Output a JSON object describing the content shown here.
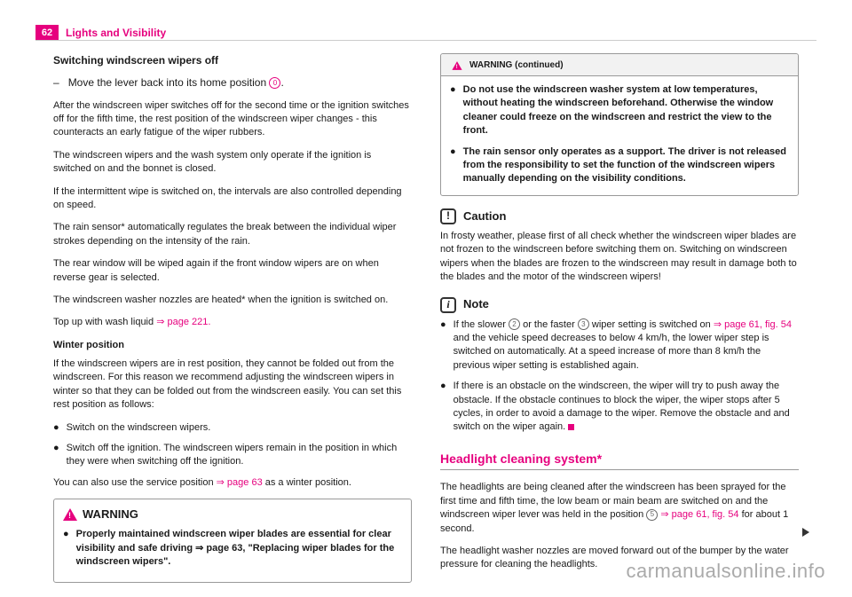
{
  "header": {
    "page_number": "62",
    "section": "Lights and Visibility"
  },
  "left": {
    "heading": "Switching windscreen wipers off",
    "step_prefix": "–",
    "step_text_a": "Move the lever back into its home position ",
    "step_circ": "0",
    "step_text_b": ".",
    "p1": "After the windscreen wiper switches off for the second time or the ignition switches off for the fifth time, the rest position of the windscreen wiper changes - this counteracts an early fatigue of the wiper rubbers.",
    "p2": "The windscreen wipers and the wash system only operate if the ignition is switched on and the bonnet is closed.",
    "p3": "If the intermittent wipe is switched on, the intervals are also controlled depending on speed.",
    "p4": "The rain sensor* automatically regulates the break between the individual wiper strokes depending on the intensity of the rain.",
    "p5": "The rear window will be wiped again if the front window wipers are on when reverse gear is selected.",
    "p6": "The windscreen washer nozzles are heated* when the ignition is switched on.",
    "p7a": "Top up with wash liquid ",
    "p7link": "⇒ page 221.",
    "winter_head": "Winter position",
    "p8": "If the windscreen wipers are in rest position, they cannot be folded out from the windscreen. For this reason we recommend adjusting the windscreen wipers in winter so that they can be folded out from the windscreen easily. You can set this rest position as follows:",
    "b1": "Switch on the windscreen wipers.",
    "b2": "Switch off the ignition. The windscreen wipers remain in the position in which they were when switching off the ignition.",
    "p9a": "You can also use the service position ",
    "p9link": "⇒ page 63",
    "p9b": " as a winter position.",
    "warn_label": "WARNING",
    "warn_b1a": "Properly maintained windscreen wiper blades are essential for clear visibility and safe driving ",
    "warn_b1link": "⇒ page 63, \"Replacing wiper blades for the windscreen wipers\"",
    "warn_b1b": "."
  },
  "right": {
    "cont_label": "WARNING (continued)",
    "cont_b1": "Do not use the windscreen washer system at low temperatures, without heating the windscreen beforehand. Otherwise the window cleaner could freeze on the windscreen and restrict the view to the front.",
    "cont_b2": "The rain sensor only operates as a support. The driver is not released from the responsibility to set the function of the windscreen wipers manually depending on the visibility conditions.",
    "caution_label": "Caution",
    "caution_p": "In frosty weather, please first of all check whether the windscreen wiper blades are not frozen to the windscreen before switching them on. Switching on windscreen wipers when the blades are frozen to the windscreen may result in damage both to the blades and the motor of the windscreen wipers!",
    "note_label": "Note",
    "note_b1a": "If the slower ",
    "note_c1": "2",
    "note_b1b": " or the faster ",
    "note_c2": "3",
    "note_b1c": " wiper setting is switched on ",
    "note_link": "⇒ page 61, fig. 54",
    "note_b1d": " and the vehicle speed decreases to below 4 km/h, the lower wiper step is switched on automatically. At a speed increase of more than 8 km/h the previous wiper setting is established again.",
    "note_b2": "If there is an obstacle on the windscreen, the wiper will try to push away the obstacle. If the obstacle continues to block the wiper, the wiper stops after 5 cycles, in order to avoid a damage to the wiper. Remove the obstacle and and switch on the wiper again.",
    "headlight_heading": "Headlight cleaning system*",
    "hp1a": "The headlights are being cleaned after the windscreen has been sprayed for the first time and fifth time, the low beam or main beam are switched on and the windscreen wiper lever was held in the position ",
    "hp1_circ": "5",
    "hp1b": " ",
    "hp1_link": "⇒ page 61, fig. 54",
    "hp1c": " for about 1 second.",
    "hp2": "The headlight washer nozzles are moved forward out of the bumper by the water pressure for cleaning the headlights."
  },
  "watermark": "carmanualsonline.info"
}
